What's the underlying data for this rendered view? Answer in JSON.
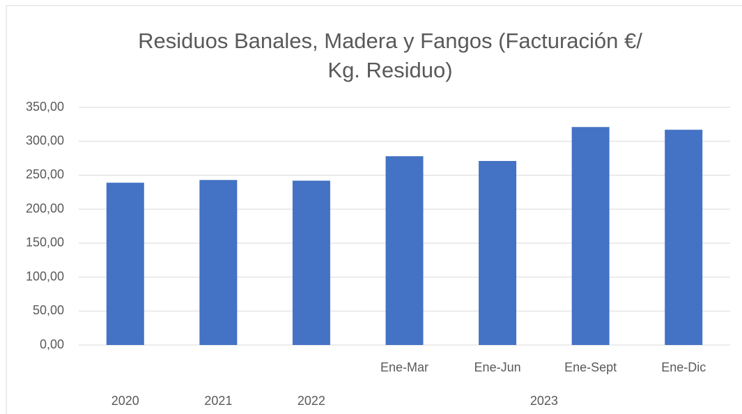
{
  "chart_data": {
    "type": "bar",
    "title": "Residuos Banales, Madera y Fangos (Facturación €/ Kg. Residuo)",
    "categories": [
      null,
      null,
      null,
      "Ene-Mar",
      "Ene-Jun",
      "Ene-Sept",
      "Ene-Dic"
    ],
    "category_groups": [
      {
        "label": "2020",
        "size": 1
      },
      {
        "label": "2021",
        "size": 1
      },
      {
        "label": "2022",
        "size": 1
      },
      {
        "label": "2023",
        "size": 4
      }
    ],
    "values": [
      239,
      243,
      242,
      278,
      271,
      321,
      317
    ],
    "color": "#4472c4",
    "ylim": [
      0,
      350
    ],
    "yticks": [
      {
        "value": 0,
        "label": "0,00"
      },
      {
        "value": 50,
        "label": "50,00"
      },
      {
        "value": 100,
        "label": "100,00"
      },
      {
        "value": 150,
        "label": "150,00"
      },
      {
        "value": 200,
        "label": "200,00"
      },
      {
        "value": 250,
        "label": "250,00"
      },
      {
        "value": 300,
        "label": "300,00"
      },
      {
        "value": 350,
        "label": "350,00"
      }
    ],
    "grid": true
  }
}
